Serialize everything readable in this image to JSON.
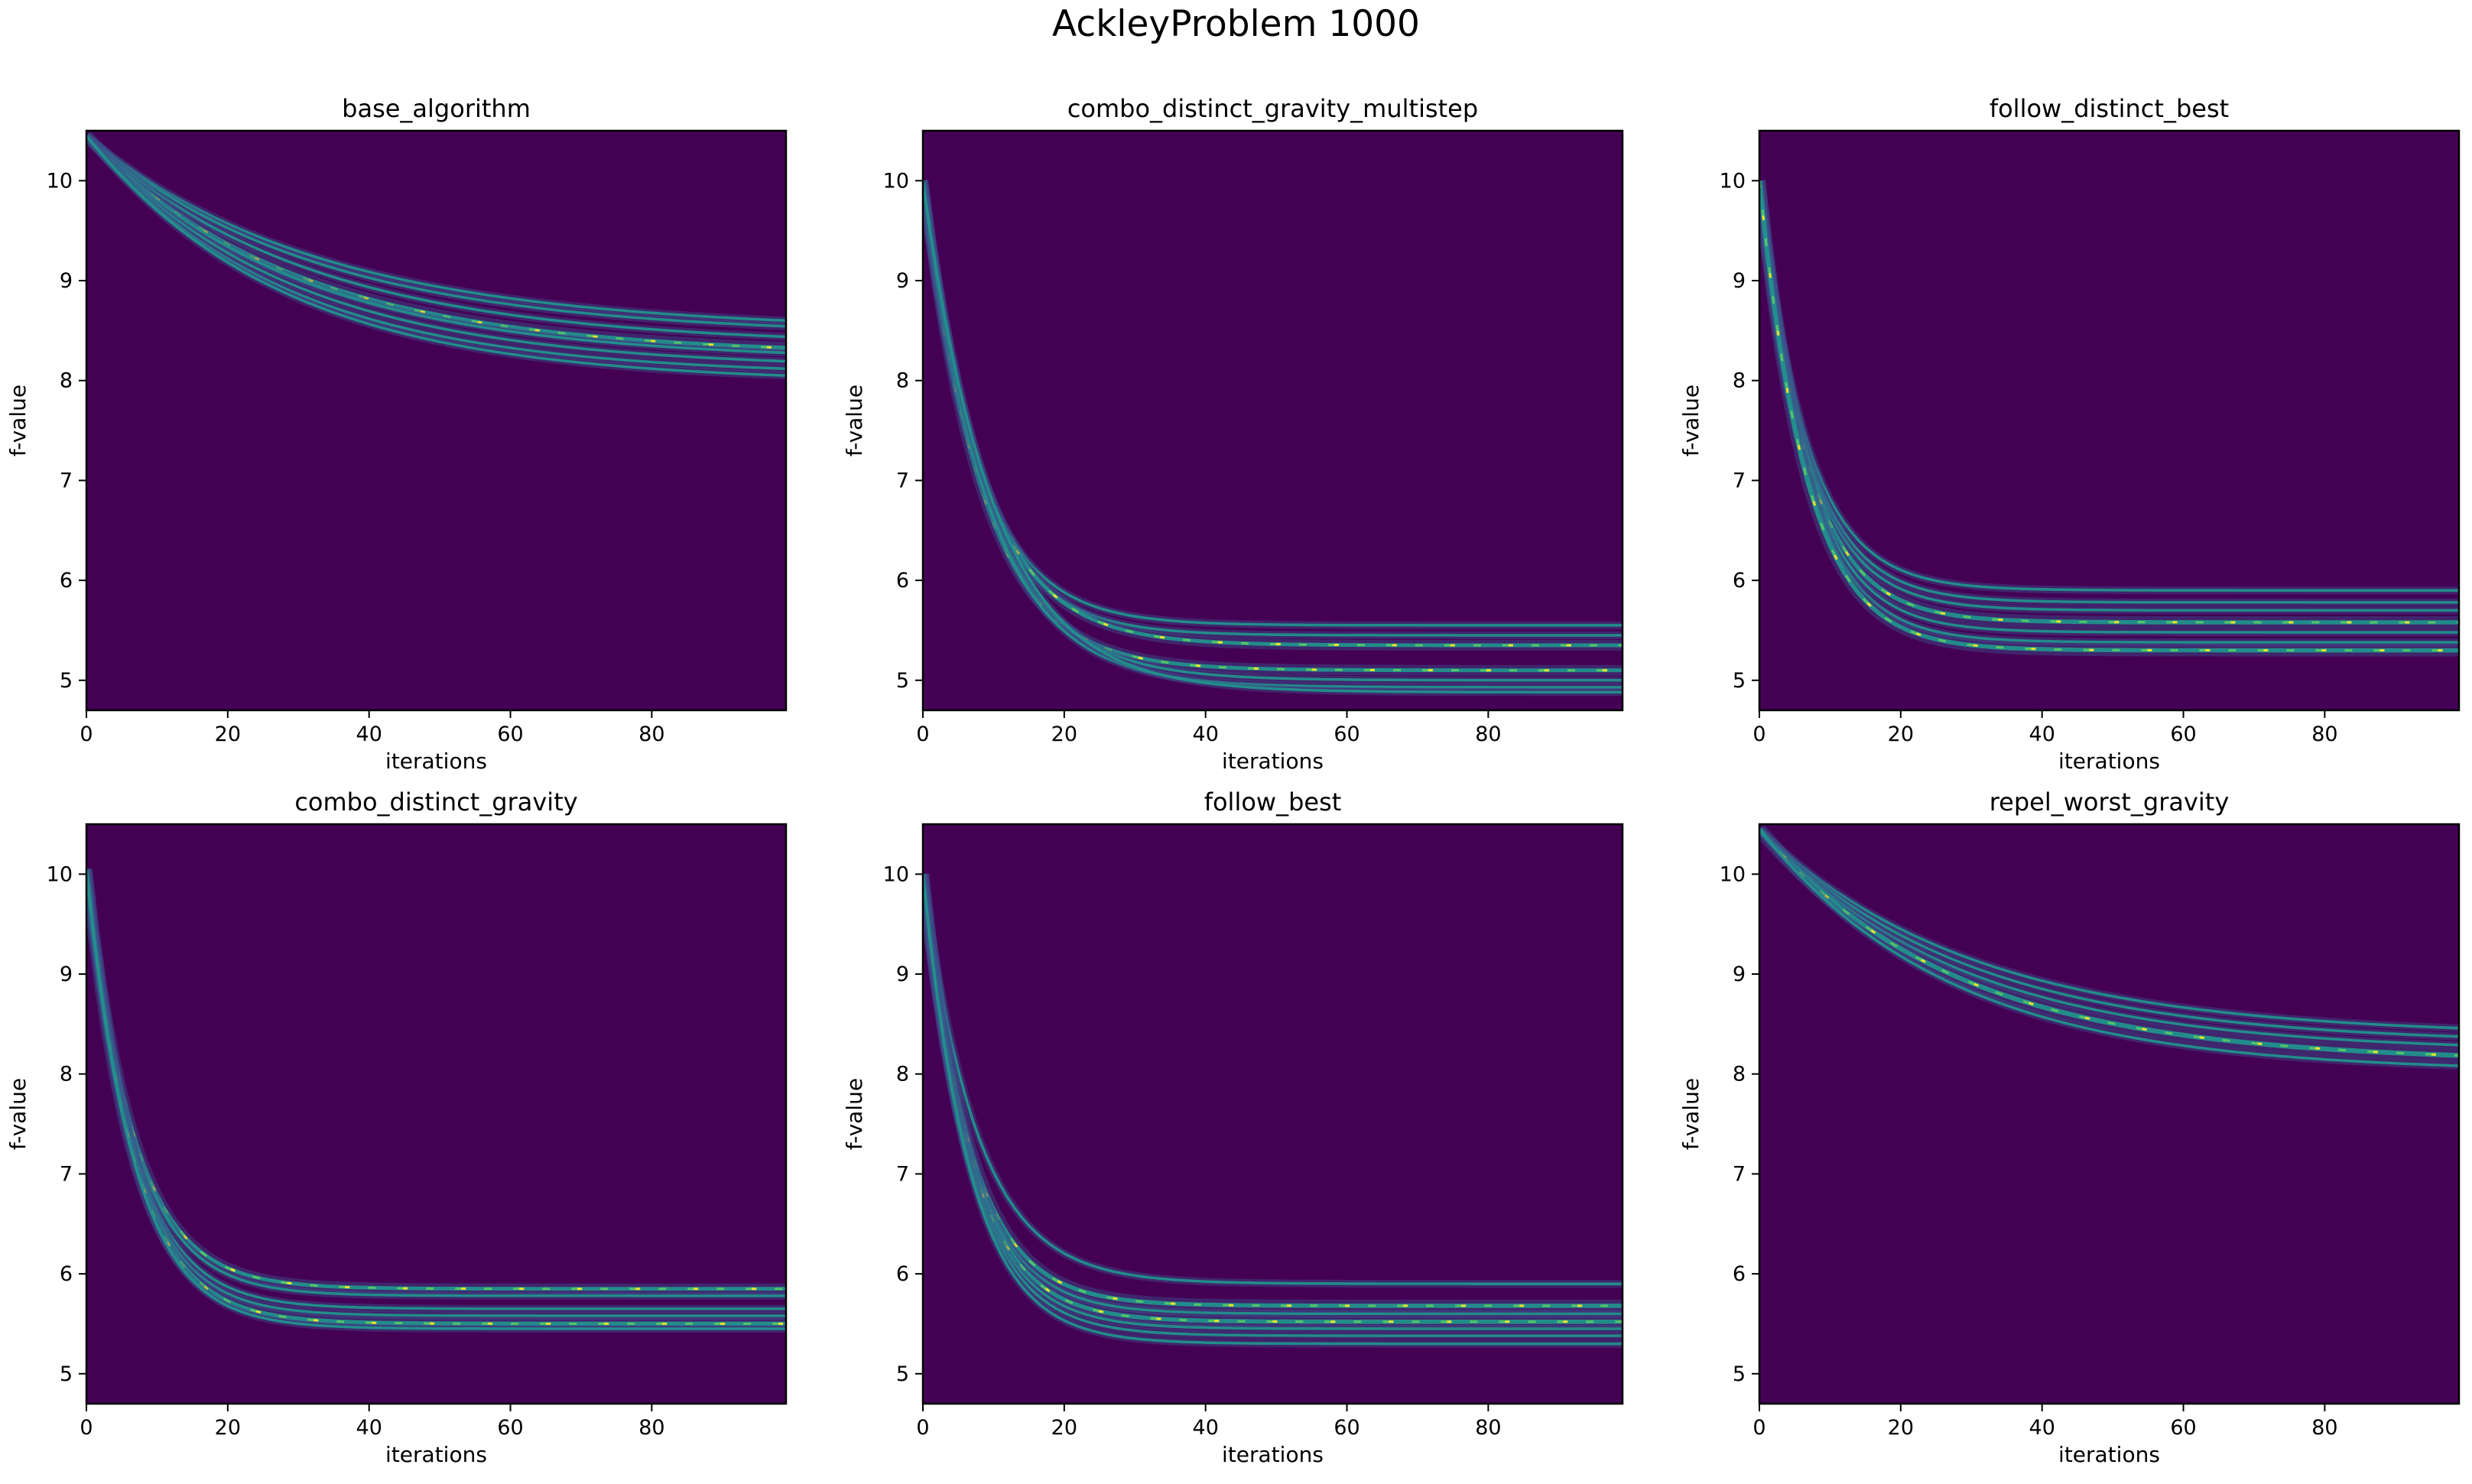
{
  "chart_data": {
    "title": "AckleyProblem 1000",
    "colors": {
      "background": "#440154",
      "low": "#3b528b",
      "mid": "#21918c",
      "high": "#5ec962",
      "peak": "#fde725"
    },
    "panels": [
      {
        "type": "heatmap",
        "title": "base_algorithm",
        "xlabel": "iterations",
        "ylabel": "f-value",
        "xlim": [
          0,
          99
        ],
        "ylim": [
          4.7,
          10.5
        ],
        "xticks": [
          "0",
          "20",
          "40",
          "60",
          "80"
        ],
        "xtick_values": [
          0,
          20,
          40,
          60,
          80
        ],
        "yticks": [
          "5",
          "6",
          "7",
          "8",
          "9",
          "10"
        ],
        "ytick_values": [
          5,
          6,
          7,
          8,
          9,
          10
        ],
        "runs": [
          {
            "start": 10.45,
            "end": 8.5,
            "k": 0.03,
            "w": 1.0
          },
          {
            "start": 10.45,
            "end": 8.45,
            "k": 0.031,
            "w": 1.0
          },
          {
            "start": 10.45,
            "end": 8.35,
            "k": 0.032,
            "w": 1.0
          },
          {
            "start": 10.45,
            "end": 8.25,
            "k": 0.034,
            "w": 1.6
          },
          {
            "start": 10.45,
            "end": 8.2,
            "k": 0.034,
            "w": 1.0
          },
          {
            "start": 10.45,
            "end": 8.12,
            "k": 0.035,
            "w": 1.0
          },
          {
            "start": 10.45,
            "end": 8.05,
            "k": 0.036,
            "w": 1.0
          },
          {
            "start": 10.45,
            "end": 7.98,
            "k": 0.036,
            "w": 1.0
          }
        ]
      },
      {
        "type": "heatmap",
        "title": "combo_distinct_gravity_multistep",
        "xlabel": "iterations",
        "ylabel": "f-value",
        "xlim": [
          0,
          99
        ],
        "ylim": [
          4.7,
          10.5
        ],
        "xticks": [
          "0",
          "20",
          "40",
          "60",
          "80"
        ],
        "xtick_values": [
          0,
          20,
          40,
          60,
          80
        ],
        "yticks": [
          "5",
          "6",
          "7",
          "8",
          "9",
          "10"
        ],
        "ytick_values": [
          5,
          6,
          7,
          8,
          9,
          10
        ],
        "runs": [
          {
            "start": 10.0,
            "end": 5.55,
            "k": 0.13,
            "w": 1.0
          },
          {
            "start": 10.0,
            "end": 5.45,
            "k": 0.13,
            "w": 1.0
          },
          {
            "start": 10.0,
            "end": 5.35,
            "k": 0.12,
            "w": 1.4
          },
          {
            "start": 10.0,
            "end": 5.1,
            "k": 0.12,
            "w": 1.4
          },
          {
            "start": 10.0,
            "end": 5.0,
            "k": 0.11,
            "w": 1.0
          },
          {
            "start": 10.0,
            "end": 4.93,
            "k": 0.11,
            "w": 1.0
          },
          {
            "start": 10.0,
            "end": 4.88,
            "k": 0.1,
            "w": 1.0
          }
        ]
      },
      {
        "type": "heatmap",
        "title": "follow_distinct_best",
        "xlabel": "iterations",
        "ylabel": "f-value",
        "xlim": [
          0,
          99
        ],
        "ylim": [
          4.7,
          10.5
        ],
        "xticks": [
          "0",
          "20",
          "40",
          "60",
          "80"
        ],
        "xtick_values": [
          0,
          20,
          40,
          60,
          80
        ],
        "yticks": [
          "5",
          "6",
          "7",
          "8",
          "9",
          "10"
        ],
        "ytick_values": [
          5,
          6,
          7,
          8,
          9,
          10
        ],
        "runs": [
          {
            "start": 10.0,
            "end": 5.9,
            "k": 0.15,
            "w": 1.0
          },
          {
            "start": 10.0,
            "end": 5.78,
            "k": 0.15,
            "w": 1.0
          },
          {
            "start": 10.0,
            "end": 5.7,
            "k": 0.15,
            "w": 1.0
          },
          {
            "start": 10.0,
            "end": 5.58,
            "k": 0.15,
            "w": 1.6
          },
          {
            "start": 10.0,
            "end": 5.48,
            "k": 0.15,
            "w": 1.0
          },
          {
            "start": 10.0,
            "end": 5.38,
            "k": 0.15,
            "w": 1.0
          },
          {
            "start": 10.0,
            "end": 5.3,
            "k": 0.15,
            "w": 1.6
          }
        ]
      },
      {
        "type": "heatmap",
        "title": "combo_distinct_gravity",
        "xlabel": "iterations",
        "ylabel": "f-value",
        "xlim": [
          0,
          99
        ],
        "ylim": [
          4.7,
          10.5
        ],
        "xticks": [
          "0",
          "20",
          "40",
          "60",
          "80"
        ],
        "xtick_values": [
          0,
          20,
          40,
          60,
          80
        ],
        "yticks": [
          "5",
          "6",
          "7",
          "8",
          "9",
          "10"
        ],
        "ytick_values": [
          5,
          6,
          7,
          8,
          9,
          10
        ],
        "runs": [
          {
            "start": 10.05,
            "end": 5.85,
            "k": 0.15,
            "w": 1.4
          },
          {
            "start": 10.05,
            "end": 5.78,
            "k": 0.15,
            "w": 1.0
          },
          {
            "start": 10.05,
            "end": 5.65,
            "k": 0.15,
            "w": 1.0
          },
          {
            "start": 10.05,
            "end": 5.58,
            "k": 0.15,
            "w": 1.0
          },
          {
            "start": 10.05,
            "end": 5.5,
            "k": 0.15,
            "w": 1.6
          },
          {
            "start": 10.05,
            "end": 5.45,
            "k": 0.15,
            "w": 1.0
          }
        ]
      },
      {
        "type": "heatmap",
        "title": "follow_best",
        "xlabel": "iterations",
        "ylabel": "f-value",
        "xlim": [
          0,
          99
        ],
        "ylim": [
          4.7,
          10.5
        ],
        "xticks": [
          "0",
          "20",
          "40",
          "60",
          "80"
        ],
        "xtick_values": [
          0,
          20,
          40,
          60,
          80
        ],
        "yticks": [
          "5",
          "6",
          "7",
          "8",
          "9",
          "10"
        ],
        "ytick_values": [
          5,
          6,
          7,
          8,
          9,
          10
        ],
        "runs": [
          {
            "start": 10.0,
            "end": 5.9,
            "k": 0.13,
            "w": 1.0
          },
          {
            "start": 10.0,
            "end": 5.68,
            "k": 0.15,
            "w": 1.6
          },
          {
            "start": 10.0,
            "end": 5.6,
            "k": 0.15,
            "w": 1.0
          },
          {
            "start": 10.0,
            "end": 5.52,
            "k": 0.15,
            "w": 1.6
          },
          {
            "start": 10.0,
            "end": 5.45,
            "k": 0.15,
            "w": 1.0
          },
          {
            "start": 10.0,
            "end": 5.38,
            "k": 0.15,
            "w": 1.0
          },
          {
            "start": 10.0,
            "end": 5.3,
            "k": 0.15,
            "w": 1.0
          }
        ]
      },
      {
        "type": "heatmap",
        "title": "repel_worst_gravity",
        "xlabel": "iterations",
        "ylabel": "f-value",
        "xlim": [
          0,
          99
        ],
        "ylim": [
          4.7,
          10.5
        ],
        "xticks": [
          "0",
          "20",
          "40",
          "60",
          "80"
        ],
        "xtick_values": [
          0,
          20,
          40,
          60,
          80
        ],
        "yticks": [
          "5",
          "6",
          "7",
          "8",
          "9",
          "10"
        ],
        "ytick_values": [
          5,
          6,
          7,
          8,
          9,
          10
        ],
        "runs": [
          {
            "start": 10.45,
            "end": 8.38,
            "k": 0.033,
            "w": 1.0
          },
          {
            "start": 10.45,
            "end": 8.3,
            "k": 0.034,
            "w": 1.0
          },
          {
            "start": 10.45,
            "end": 8.22,
            "k": 0.035,
            "w": 1.0
          },
          {
            "start": 10.45,
            "end": 8.12,
            "k": 0.036,
            "w": 1.8
          },
          {
            "start": 10.45,
            "end": 8.02,
            "k": 0.037,
            "w": 1.0
          }
        ]
      }
    ]
  }
}
